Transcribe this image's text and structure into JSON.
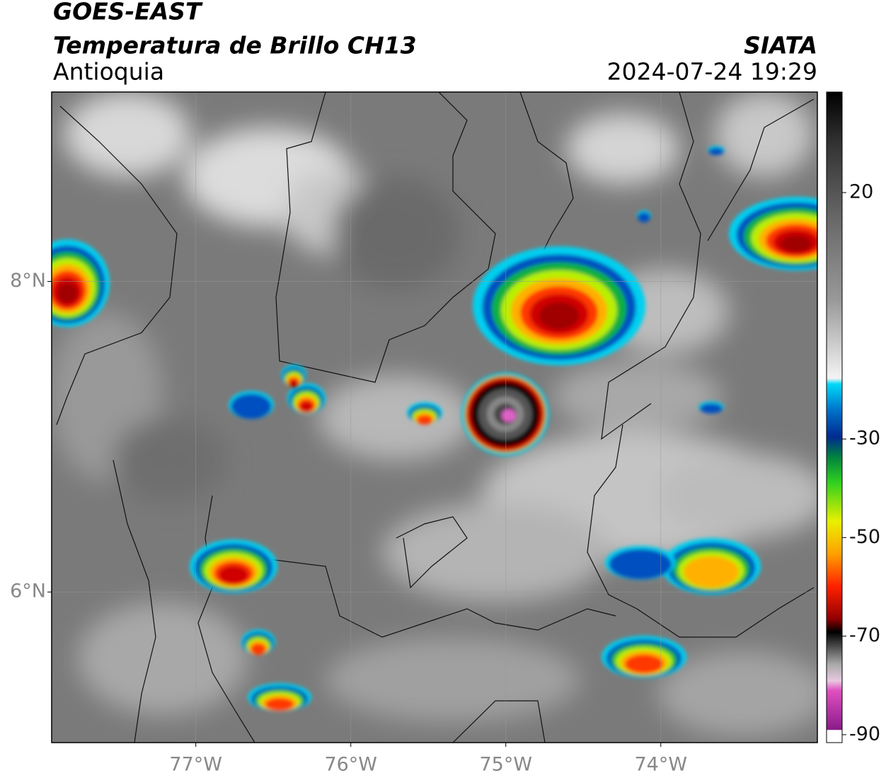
{
  "header": {
    "title": "GOES-EAST",
    "subtitle": "Temperatura de Brillo CH13",
    "region": "Antioquia",
    "source": "SIATA",
    "datetime": "2024-07-24 19:29"
  },
  "map": {
    "xlim": [
      -77.93,
      -72.99
    ],
    "ylim": [
      5.03,
      9.22
    ],
    "xticks": [
      {
        "value": -77,
        "label": "77°W"
      },
      {
        "value": -76,
        "label": "76°W"
      },
      {
        "value": -75,
        "label": "75°W"
      },
      {
        "value": -74,
        "label": "74°W"
      }
    ],
    "yticks": [
      {
        "value": 8,
        "label": "8°N"
      },
      {
        "value": 6,
        "label": "6°N"
      }
    ],
    "grid": true
  },
  "colorbar": {
    "lim": [
      -91.6,
      40.4
    ],
    "ticks": [
      20,
      -30,
      -50,
      -70,
      -90
    ]
  }
}
